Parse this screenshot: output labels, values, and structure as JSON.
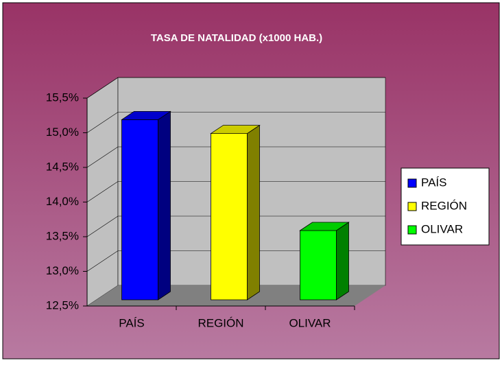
{
  "chart_data": {
    "type": "bar3d",
    "title": "TASA DE NATALIDAD (x1000 HAB.)",
    "categories": [
      "PAÍS",
      "REGIÓN",
      "OLIVAR"
    ],
    "series": [
      {
        "name": "PAÍS",
        "color": "#0000ff"
      },
      {
        "name": "REGIÓN",
        "color": "#ffff00"
      },
      {
        "name": "OLIVAR",
        "color": "#00ff00"
      }
    ],
    "values": [
      15.1,
      14.9,
      13.5
    ],
    "ylim": [
      12.5,
      15.5
    ],
    "yticks": [
      {
        "value": 12.5,
        "label": "12,5%"
      },
      {
        "value": 13.0,
        "label": "13,0%"
      },
      {
        "value": 13.5,
        "label": "13,5%"
      },
      {
        "value": 14.0,
        "label": "14,0%"
      },
      {
        "value": 14.5,
        "label": "14,5%"
      },
      {
        "value": 15.0,
        "label": "15,0%"
      },
      {
        "value": 15.5,
        "label": "15,5%"
      }
    ],
    "grid": true,
    "legend": "right"
  }
}
